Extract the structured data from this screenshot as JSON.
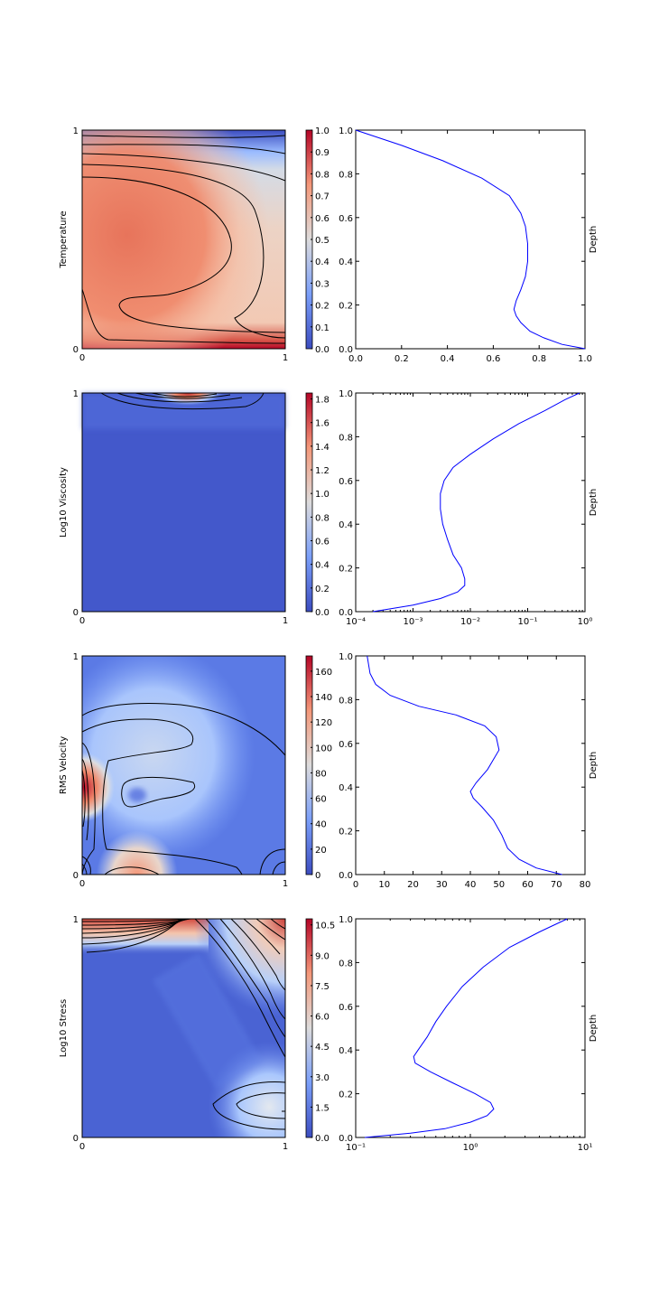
{
  "chart_data": [
    {
      "type": "heatmap",
      "ylabel": "Temperature",
      "xticks": [
        "0",
        "1"
      ],
      "yticks": [
        "0",
        "1"
      ],
      "colormap": "coolwarm",
      "colorbar": {
        "min": 0.0,
        "max": 1.0,
        "ticks": [
          "0.0",
          "0.1",
          "0.2",
          "0.3",
          "0.4",
          "0.5",
          "0.6",
          "0.7",
          "0.8",
          "0.9",
          "1.0"
        ]
      }
    },
    {
      "type": "line",
      "ylabel": "Depth",
      "xscale": "linear",
      "xlim": [
        0,
        1
      ],
      "ylim": [
        0,
        1
      ],
      "xticks": [
        "0.0",
        "0.2",
        "0.4",
        "0.6",
        "0.8",
        "1.0"
      ],
      "yticks": [
        "0.0",
        "0.2",
        "0.4",
        "0.6",
        "0.8",
        "1.0"
      ],
      "series": [
        {
          "color": "#0000ff",
          "x": [
            1.0,
            0.9,
            0.82,
            0.76,
            0.72,
            0.7,
            0.69,
            0.7,
            0.72,
            0.74,
            0.75,
            0.75,
            0.74,
            0.72,
            0.67,
            0.55,
            0.38,
            0.2,
            0.0
          ],
          "y": [
            0.0,
            0.02,
            0.05,
            0.08,
            0.12,
            0.15,
            0.18,
            0.22,
            0.27,
            0.33,
            0.4,
            0.48,
            0.56,
            0.62,
            0.7,
            0.78,
            0.86,
            0.93,
            1.0
          ]
        }
      ]
    },
    {
      "type": "heatmap",
      "ylabel": "Log10 Viscosity",
      "xticks": [
        "0",
        "1"
      ],
      "yticks": [
        "0",
        "1"
      ],
      "colormap": "coolwarm",
      "colorbar": {
        "min": 0.0,
        "max": 1.85,
        "ticks": [
          "0.0",
          "0.2",
          "0.4",
          "0.6",
          "0.8",
          "1.0",
          "1.2",
          "1.4",
          "1.6",
          "1.8"
        ]
      }
    },
    {
      "type": "line",
      "ylabel": "Depth",
      "xscale": "log",
      "xlim": [
        0.0001,
        1
      ],
      "ylim": [
        0,
        1
      ],
      "xticks": [
        "10⁻⁴",
        "10⁻³",
        "10⁻²",
        "10⁻¹",
        "10⁰"
      ],
      "yticks": [
        "0.0",
        "0.2",
        "0.4",
        "0.6",
        "0.8",
        "1.0"
      ],
      "series": [
        {
          "color": "#0000ff",
          "x": [
            0.0002,
            0.001,
            0.003,
            0.006,
            0.008,
            0.008,
            0.007,
            0.005,
            0.004,
            0.0033,
            0.003,
            0.003,
            0.0035,
            0.005,
            0.01,
            0.025,
            0.07,
            0.2,
            0.45,
            0.8
          ],
          "y": [
            0.0,
            0.03,
            0.06,
            0.09,
            0.12,
            0.15,
            0.2,
            0.26,
            0.33,
            0.4,
            0.47,
            0.54,
            0.6,
            0.66,
            0.72,
            0.79,
            0.86,
            0.92,
            0.97,
            1.0
          ]
        }
      ]
    },
    {
      "type": "heatmap",
      "ylabel": "RMS Velocity",
      "xticks": [
        "0",
        "1"
      ],
      "yticks": [
        "0",
        "1"
      ],
      "colormap": "coolwarm",
      "colorbar": {
        "min": 0,
        "max": 172,
        "ticks": [
          "0",
          "20",
          "40",
          "60",
          "80",
          "100",
          "120",
          "140",
          "160"
        ]
      }
    },
    {
      "type": "line",
      "ylabel": "Depth",
      "xscale": "linear",
      "xlim": [
        0,
        80
      ],
      "ylim": [
        0,
        1
      ],
      "xticks": [
        "0",
        "10",
        "20",
        "30",
        "40",
        "50",
        "60",
        "70",
        "80"
      ],
      "yticks": [
        "0.0",
        "0.2",
        "0.4",
        "0.6",
        "0.8",
        "1.0"
      ],
      "series": [
        {
          "color": "#0000ff",
          "x": [
            72,
            63,
            57,
            53,
            51,
            48,
            44,
            41,
            40,
            42,
            46,
            50,
            49,
            45,
            35,
            22,
            12,
            7,
            5,
            4.5,
            4
          ],
          "y": [
            0.0,
            0.03,
            0.07,
            0.12,
            0.18,
            0.25,
            0.31,
            0.35,
            0.38,
            0.42,
            0.48,
            0.57,
            0.63,
            0.68,
            0.73,
            0.77,
            0.82,
            0.87,
            0.92,
            0.96,
            1.0
          ]
        }
      ]
    },
    {
      "type": "heatmap",
      "ylabel": "Log10 Stress",
      "xticks": [
        "0",
        "1"
      ],
      "yticks": [
        "0",
        "1"
      ],
      "colormap": "coolwarm",
      "colorbar": {
        "min": 0.0,
        "max": 10.8,
        "ticks": [
          "0.0",
          "1.5",
          "3.0",
          "4.5",
          "6.0",
          "7.5",
          "9.0",
          "10.5"
        ]
      }
    },
    {
      "type": "line",
      "ylabel": "Depth",
      "xscale": "log",
      "xlim": [
        0.1,
        10
      ],
      "ylim": [
        0,
        1
      ],
      "xticks": [
        "10⁻¹",
        "10⁰",
        "10¹"
      ],
      "yticks": [
        "0.0",
        "0.2",
        "0.4",
        "0.6",
        "0.8",
        "1.0"
      ],
      "series": [
        {
          "color": "#0000ff",
          "x": [
            0.12,
            0.3,
            0.6,
            1.0,
            1.4,
            1.6,
            1.5,
            1.1,
            0.7,
            0.45,
            0.33,
            0.32,
            0.35,
            0.42,
            0.5,
            0.62,
            0.85,
            1.3,
            2.2,
            4.0,
            7.0
          ],
          "y": [
            0.0,
            0.02,
            0.04,
            0.07,
            0.1,
            0.13,
            0.16,
            0.2,
            0.25,
            0.3,
            0.34,
            0.37,
            0.4,
            0.46,
            0.53,
            0.6,
            0.69,
            0.78,
            0.87,
            0.94,
            1.0
          ]
        }
      ]
    }
  ]
}
